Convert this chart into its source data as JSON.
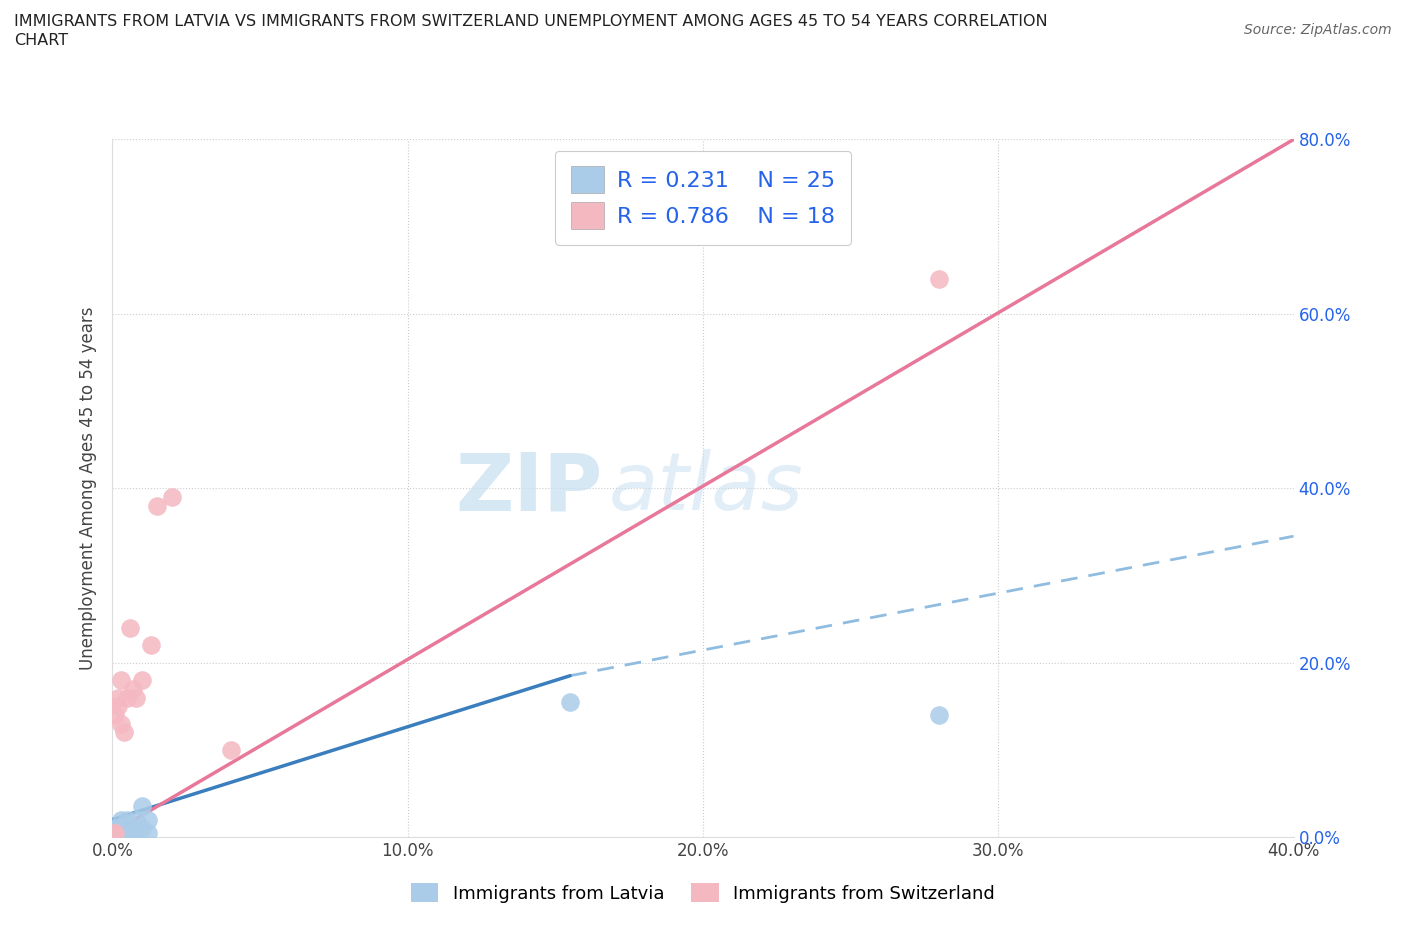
{
  "title_line1": "IMMIGRANTS FROM LATVIA VS IMMIGRANTS FROM SWITZERLAND UNEMPLOYMENT AMONG AGES 45 TO 54 YEARS CORRELATION",
  "title_line2": "CHART",
  "source_text": "Source: ZipAtlas.com",
  "ylabel": "Unemployment Among Ages 45 to 54 years",
  "xlim": [
    0.0,
    0.4
  ],
  "ylim": [
    0.0,
    0.8
  ],
  "xticks": [
    0.0,
    0.1,
    0.2,
    0.3,
    0.4
  ],
  "yticks": [
    0.0,
    0.2,
    0.4,
    0.6,
    0.8
  ],
  "latvia_color": "#aacce8",
  "switzerland_color": "#f4b8c1",
  "legend_R_latvia": "0.231",
  "legend_N_latvia": "25",
  "legend_R_switzerland": "0.786",
  "legend_N_switzerland": "18",
  "watermark_zip": "ZIP",
  "watermark_atlas": "atlas",
  "trend_latvia_x0": 0.0,
  "trend_latvia_y0": 0.02,
  "trend_latvia_x1": 0.155,
  "trend_latvia_y1": 0.185,
  "trend_dash_x0": 0.155,
  "trend_dash_y0": 0.185,
  "trend_dash_x1": 0.4,
  "trend_dash_y1": 0.345,
  "trend_sw_x0": 0.0,
  "trend_sw_y0": 0.005,
  "trend_sw_x1": 0.4,
  "trend_sw_y1": 0.8,
  "trend_latvia_color": "#3a7ebe",
  "trend_dash_color": "#90bce0",
  "trend_sw_color": "#e8789a",
  "latvia_x": [
    0.0005,
    0.001,
    0.001,
    0.0015,
    0.002,
    0.002,
    0.002,
    0.003,
    0.003,
    0.003,
    0.003,
    0.004,
    0.004,
    0.005,
    0.005,
    0.006,
    0.006,
    0.007,
    0.008,
    0.01,
    0.01,
    0.012,
    0.012,
    0.155,
    0.28
  ],
  "latvia_y": [
    0.005,
    0.005,
    0.01,
    0.005,
    0.005,
    0.005,
    0.01,
    0.005,
    0.01,
    0.005,
    0.02,
    0.005,
    0.01,
    0.005,
    0.02,
    0.005,
    0.01,
    0.005,
    0.02,
    0.01,
    0.035,
    0.005,
    0.02,
    0.155,
    0.14
  ],
  "switzerland_x": [
    0.0005,
    0.001,
    0.001,
    0.002,
    0.002,
    0.003,
    0.003,
    0.004,
    0.005,
    0.006,
    0.007,
    0.008,
    0.01,
    0.013,
    0.015,
    0.02,
    0.04,
    0.28
  ],
  "switzerland_y": [
    0.005,
    0.005,
    0.14,
    0.15,
    0.16,
    0.13,
    0.18,
    0.12,
    0.16,
    0.24,
    0.17,
    0.16,
    0.18,
    0.22,
    0.38,
    0.39,
    0.1,
    0.64
  ],
  "background_color": "#ffffff",
  "legend_text_color": "#2563eb",
  "right_axis_color": "#2563eb",
  "title_color": "#222222"
}
